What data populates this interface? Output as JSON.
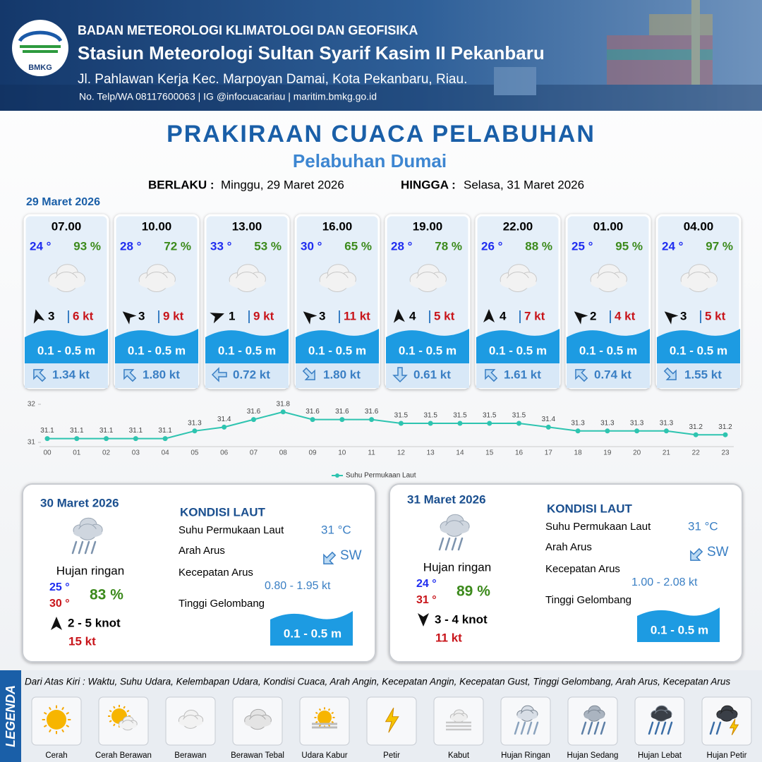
{
  "header": {
    "logo": "BMKG",
    "agency": "BADAN METEOROLOGI KLIMATOLOGI DAN GEOFISIKA",
    "station": "Stasiun Meteorologi Sultan Syarif Kasim II Pekanbaru",
    "address": "Jl. Pahlawan Kerja Kec. Marpoyan Damai, Kota Pekanbaru, Riau.",
    "contact": "No. Telp/WA 08117600063 | IG @infocuacariau | maritim.bmkg.go.id"
  },
  "title": "PRAKIRAAN CUACA PELABUHAN",
  "subtitle": "Pelabuhan Dumai",
  "validity": {
    "from_label": "BERLAKU :",
    "from": "Minggu, 29 Maret 2026",
    "to_label": "HINGGA :",
    "to": "Selasa, 31 Maret 2026"
  },
  "forecast": {
    "date": "29 Maret 2026",
    "slots": [
      {
        "time": "07.00",
        "temp": "24 °",
        "humidity": "93 %",
        "wind_speed": 3,
        "gust": "6 kt",
        "wave": "0.1 - 0.5 m",
        "current": "1.34 kt"
      },
      {
        "time": "10.00",
        "temp": "28 °",
        "humidity": "72 %",
        "wind_speed": 3,
        "gust": "9 kt",
        "wave": "0.1 - 0.5 m",
        "current": "1.80 kt"
      },
      {
        "time": "13.00",
        "temp": "33 °",
        "humidity": "53 %",
        "wind_speed": 1,
        "gust": "9 kt",
        "wave": "0.1 - 0.5 m",
        "current": "0.72 kt"
      },
      {
        "time": "16.00",
        "temp": "30 °",
        "humidity": "65 %",
        "wind_speed": 3,
        "gust": "11 kt",
        "wave": "0.1 - 0.5 m",
        "current": "1.80 kt"
      },
      {
        "time": "19.00",
        "temp": "28 °",
        "humidity": "78 %",
        "wind_speed": 4,
        "gust": "5 kt",
        "wave": "0.1 - 0.5 m",
        "current": "0.61 kt"
      },
      {
        "time": "22.00",
        "temp": "26 °",
        "humidity": "88 %",
        "wind_speed": 4,
        "gust": "7 kt",
        "wave": "0.1 - 0.5 m",
        "current": "1.61 kt"
      },
      {
        "time": "01.00",
        "temp": "25 °",
        "humidity": "95 %",
        "wind_speed": 2,
        "gust": "4 kt",
        "wave": "0.1 - 0.5 m",
        "current": "0.74 kt"
      },
      {
        "time": "04.00",
        "temp": "24 °",
        "humidity": "97 %",
        "wind_speed": 3,
        "gust": "5 kt",
        "wave": "0.1 - 0.5 m",
        "current": "1.55 kt"
      }
    ]
  },
  "chart_data": {
    "type": "line",
    "categories": [
      "00",
      "01",
      "02",
      "03",
      "04",
      "05",
      "06",
      "07",
      "08",
      "09",
      "10",
      "11",
      "12",
      "13",
      "14",
      "15",
      "16",
      "17",
      "18",
      "19",
      "20",
      "21",
      "22",
      "23"
    ],
    "series": [
      {
        "name": "Suhu Permukaan Laut",
        "color": "#2ec4b0",
        "values": [
          31.1,
          31.1,
          31.1,
          31.1,
          31.1,
          31.3,
          31.4,
          31.6,
          31.8,
          31.6,
          31.6,
          31.6,
          31.5,
          31.5,
          31.5,
          31.5,
          31.5,
          31.4,
          31.3,
          31.3,
          31.3,
          31.3,
          31.2,
          31.2
        ]
      }
    ],
    "ylim": [
      31,
      32
    ],
    "yticks": [
      31,
      32
    ],
    "legend": "bottom"
  },
  "outlook": [
    {
      "date": "30 Maret 2026",
      "condition": "Hujan ringan",
      "temp_min": "25 °",
      "temp_max": "30 °",
      "humidity": "83 %",
      "wind": "2  - 5 knot",
      "gust": "15 kt",
      "sea_title": "KONDISI LAUT",
      "sst_label": "Suhu Permukaan Laut",
      "sst": "31 °C",
      "current_dir_label": "Arah Arus",
      "current_dir": "SW",
      "current_speed_label": "Kecepatan Arus",
      "current_speed": "0.80  - 1.95 kt",
      "wave_label": "Tinggi Gelombang",
      "wave": "0.1 - 0.5 m"
    },
    {
      "date": "31 Maret 2026",
      "condition": "Hujan ringan",
      "temp_min": "24 °",
      "temp_max": "31 °",
      "humidity": "89 %",
      "wind": "3  - 4 knot",
      "gust": "11 kt",
      "sea_title": "KONDISI LAUT",
      "sst_label": "Suhu Permukaan Laut",
      "sst": "31 °C",
      "current_dir_label": "Arah Arus",
      "current_dir": "SW",
      "current_speed_label": "Kecepatan Arus",
      "current_speed": "1.00  - 2.08 kt",
      "wave_label": "Tinggi Gelombang",
      "wave": "0.1 - 0.5 m"
    }
  ],
  "legend": {
    "title": "LEGENDA",
    "note": "Dari Atas Kiri : Waktu, Suhu Udara, Kelembapan Udara, Kondisi Cuaca, Arah Angin, Kecepatan Angin, Kecepatan Gust, Tinggi Gelombang, Arah Arus, Kecepatan Arus",
    "items": [
      "Cerah",
      "Cerah Berawan",
      "Berawan",
      "Berawan Tebal",
      "Udara Kabur",
      "Petir",
      "Kabut",
      "Hujan Ringan",
      "Hujan Sedang",
      "Hujan Lebat",
      "Hujan Petir"
    ]
  }
}
